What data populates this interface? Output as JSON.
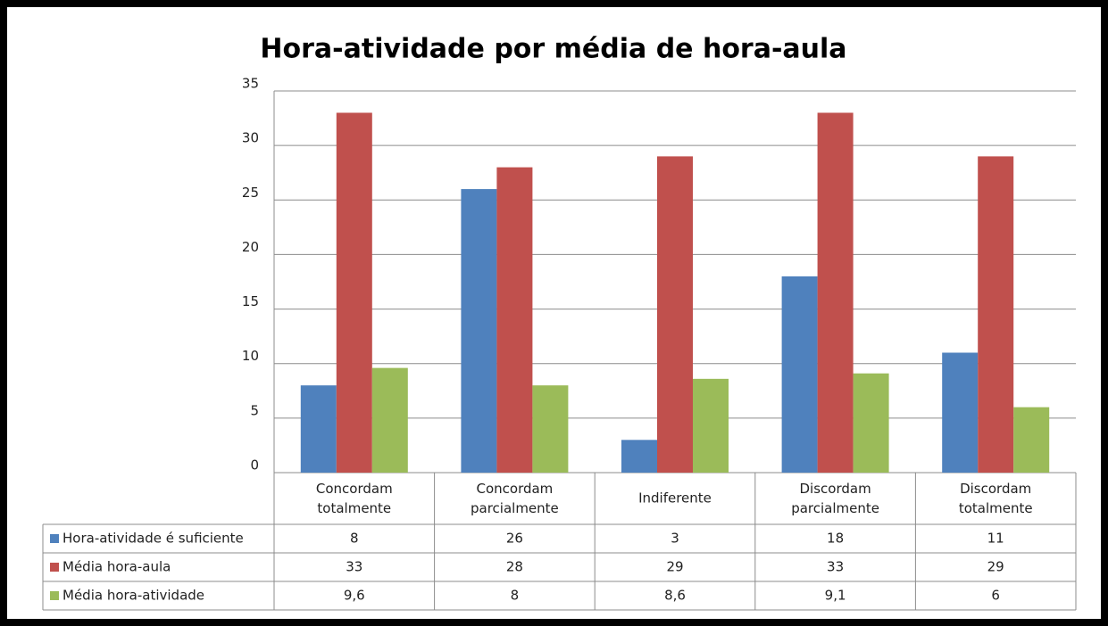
{
  "chart_data": {
    "type": "bar",
    "title": "Hora-atividade por média de hora-aula",
    "categories": [
      "Concordam totalmente",
      "Concordam parcialmente",
      "Indiferente",
      "Discordam parcialmente",
      "Discordam totalmente"
    ],
    "series": [
      {
        "name": "Hora-atividade é suficiente",
        "color": "#4f81bd",
        "values": [
          8,
          26,
          3,
          18,
          11
        ]
      },
      {
        "name": "Média hora-aula",
        "color": "#c0504d",
        "values": [
          33,
          28,
          29,
          33,
          29
        ]
      },
      {
        "name": "Média hora-atividade",
        "color": "#9bbb59",
        "values": [
          9.6,
          8,
          8.6,
          9.1,
          6
        ],
        "value_labels": [
          "9,6",
          "8",
          "8,6",
          "9,1",
          "6"
        ]
      }
    ],
    "ylim": [
      0,
      35
    ],
    "yticks": [
      0,
      5,
      10,
      15,
      20,
      25,
      30,
      35
    ],
    "grid": true,
    "data_table": true
  }
}
